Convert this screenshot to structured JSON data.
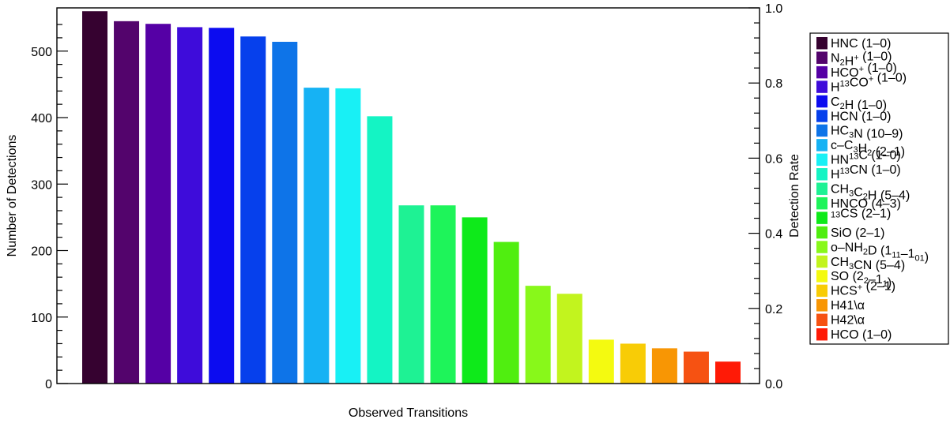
{
  "chart_data": {
    "type": "bar",
    "title": "",
    "xlabel": "Observed Transitions",
    "ylabel": "Number of Detections",
    "y2label": "Detection Rate",
    "ylim": [
      0,
      565
    ],
    "y2lim": [
      0,
      1.0
    ],
    "yticks": [
      "0",
      "100",
      "200",
      "300",
      "400",
      "500"
    ],
    "y2ticks": [
      "0.0",
      "0.2",
      "0.4",
      "0.6",
      "0.8",
      "1.0"
    ],
    "legend_position": "right, outside plot",
    "categories": [
      "HNC (1–0)",
      "N2H+ (1–0)",
      "HCO+ (1–0)",
      "H13CO+ (1–0)",
      "C2H (1–0)",
      "HCN (1–0)",
      "HC3N (10–9)",
      "c–C3H2 (2–1)",
      "HN13C (1–0)",
      "H13CN (1–0)",
      "CH3C2H (5–4)",
      "HNCO (4–3)",
      "13CS (2–1)",
      "SiO (2–1)",
      "o–NH2D (111–101)",
      "CH3CN (5–4)",
      "SO (22–11)",
      "HCS+ (2–1)",
      "H41\\α",
      "H42\\α",
      "HCO (1–0)"
    ],
    "values": [
      560,
      545,
      541,
      536,
      535,
      522,
      514,
      445,
      444,
      402,
      268,
      268,
      250,
      213,
      147,
      135,
      66,
      60,
      53,
      48,
      33
    ],
    "colors": [
      "#360230",
      "#53046c",
      "#5500a5",
      "#3e0cda",
      "#0c0cf0",
      "#0640ec",
      "#0e74e8",
      "#16b2f4",
      "#18f0f5",
      "#14f4c4",
      "#1ef294",
      "#1ef45a",
      "#0eea1a",
      "#50ee10",
      "#88f81a",
      "#c2f41e",
      "#f4fa10",
      "#f8cc06",
      "#f89604",
      "#f65212",
      "#ff1a06"
    ],
    "legend": [
      [
        {
          "t": "HNC (1–0)"
        }
      ],
      [
        {
          "t": "N"
        },
        {
          "t": "2",
          "p": "sub"
        },
        {
          "t": "H"
        },
        {
          "t": "+",
          "p": "sup"
        },
        {
          "t": " (1–0)"
        }
      ],
      [
        {
          "t": "HCO"
        },
        {
          "t": "+",
          "p": "sup"
        },
        {
          "t": " (1–0)"
        }
      ],
      [
        {
          "t": "H"
        },
        {
          "t": "13",
          "p": "sup"
        },
        {
          "t": "CO"
        },
        {
          "t": "+",
          "p": "sup"
        },
        {
          "t": " (1–0)"
        }
      ],
      [
        {
          "t": "C"
        },
        {
          "t": "2",
          "p": "sub"
        },
        {
          "t": "H (1–0)"
        }
      ],
      [
        {
          "t": "HCN (1–0)"
        }
      ],
      [
        {
          "t": "HC"
        },
        {
          "t": "3",
          "p": "sub"
        },
        {
          "t": "N (10–9)"
        }
      ],
      [
        {
          "t": "c–C"
        },
        {
          "t": "3",
          "p": "sub"
        },
        {
          "t": "H"
        },
        {
          "t": "2",
          "p": "sub"
        },
        {
          "t": " (2–1)"
        }
      ],
      [
        {
          "t": "HN"
        },
        {
          "t": "13",
          "p": "sup"
        },
        {
          "t": "C (1–0)"
        }
      ],
      [
        {
          "t": "H"
        },
        {
          "t": "13",
          "p": "sup"
        },
        {
          "t": "CN (1–0)"
        }
      ],
      [
        {
          "t": "CH"
        },
        {
          "t": "3",
          "p": "sub"
        },
        {
          "t": "C"
        },
        {
          "t": "2",
          "p": "sub"
        },
        {
          "t": "H (5–4)"
        }
      ],
      [
        {
          "t": "HNCO (4–3)"
        }
      ],
      [
        {
          "t": "13",
          "p": "sup"
        },
        {
          "t": "CS (2–1)"
        }
      ],
      [
        {
          "t": "SiO (2–1)"
        }
      ],
      [
        {
          "t": "o–NH"
        },
        {
          "t": "2",
          "p": "sub"
        },
        {
          "t": "D (1"
        },
        {
          "t": "11",
          "p": "sub"
        },
        {
          "t": "–1"
        },
        {
          "t": "01",
          "p": "sub"
        },
        {
          "t": ")"
        }
      ],
      [
        {
          "t": "CH"
        },
        {
          "t": "3",
          "p": "sub"
        },
        {
          "t": "CN (5–4)"
        }
      ],
      [
        {
          "t": "SO (2"
        },
        {
          "t": "2",
          "p": "sub"
        },
        {
          "t": "–1"
        },
        {
          "t": "1",
          "p": "sub"
        },
        {
          "t": ")"
        }
      ],
      [
        {
          "t": "HCS"
        },
        {
          "t": "+",
          "p": "sup"
        },
        {
          "t": " (2–1)"
        }
      ],
      [
        {
          "t": "H41\\α"
        }
      ],
      [
        {
          "t": "H42\\α"
        }
      ],
      [
        {
          "t": "HCO (1–0)"
        }
      ]
    ]
  }
}
